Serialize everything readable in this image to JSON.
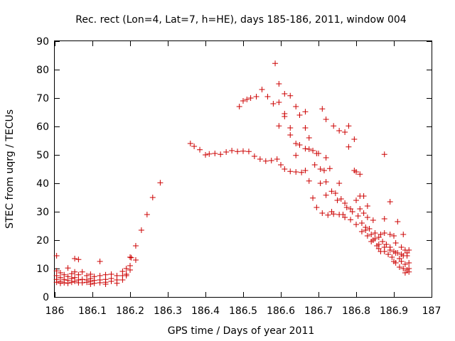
{
  "chart_data": {
    "type": "scatter",
    "title": "Rec. rect (Lon=4, Lat=7, h=HE), days 185-186, 2011, window 004",
    "xlabel": "GPS time / Days of year 2011",
    "ylabel": "STEC from uqrg / TECUs",
    "xlim": [
      186,
      187
    ],
    "ylim": [
      0,
      90
    ],
    "xticks": [
      186,
      186.1,
      186.2,
      186.3,
      186.4,
      186.5,
      186.6,
      186.7,
      186.8,
      186.9,
      187
    ],
    "xtick_labels": [
      "186",
      "186.1",
      "186.2",
      "186.3",
      "186.4",
      "186.5",
      "186.6",
      "186.7",
      "186.8",
      "186.9",
      "187"
    ],
    "yticks": [
      0,
      10,
      20,
      30,
      40,
      50,
      60,
      70,
      80,
      90
    ],
    "ytick_labels": [
      "0",
      "10",
      "20",
      "30",
      "40",
      "50",
      "60",
      "70",
      "80",
      "90"
    ],
    "marker": "+",
    "color": "#cc0000",
    "grid": false,
    "points": [
      [
        186.005,
        14.5
      ],
      [
        186.005,
        9.2
      ],
      [
        186.005,
        7.5
      ],
      [
        186.005,
        6.2
      ],
      [
        186.005,
        5.2
      ],
      [
        186.015,
        8.5
      ],
      [
        186.015,
        6.8
      ],
      [
        186.015,
        5.5
      ],
      [
        186.015,
        4.8
      ],
      [
        186.025,
        7.8
      ],
      [
        186.025,
        6.2
      ],
      [
        186.025,
        5.0
      ],
      [
        186.035,
        10.2
      ],
      [
        186.035,
        7.2
      ],
      [
        186.035,
        5.8
      ],
      [
        186.035,
        4.8
      ],
      [
        186.045,
        8.2
      ],
      [
        186.045,
        6.5
      ],
      [
        186.045,
        5.2
      ],
      [
        186.053,
        13.5
      ],
      [
        186.053,
        8.8
      ],
      [
        186.053,
        6.8
      ],
      [
        186.053,
        5.5
      ],
      [
        186.063,
        13.2
      ],
      [
        186.063,
        7.8
      ],
      [
        186.063,
        6.0
      ],
      [
        186.063,
        5.0
      ],
      [
        186.073,
        8.8
      ],
      [
        186.073,
        6.2
      ],
      [
        186.073,
        5.0
      ],
      [
        186.085,
        7.5
      ],
      [
        186.085,
        6.0
      ],
      [
        186.085,
        5.2
      ],
      [
        186.095,
        8.0
      ],
      [
        186.095,
        6.5
      ],
      [
        186.095,
        5.5
      ],
      [
        186.095,
        4.5
      ],
      [
        186.105,
        7.2
      ],
      [
        186.105,
        5.8
      ],
      [
        186.105,
        4.8
      ],
      [
        186.12,
        12.5
      ],
      [
        186.12,
        7.5
      ],
      [
        186.12,
        6.0
      ],
      [
        186.12,
        5.0
      ],
      [
        186.135,
        7.8
      ],
      [
        186.135,
        6.2
      ],
      [
        186.135,
        5.2
      ],
      [
        186.135,
        4.5
      ],
      [
        186.15,
        8.0
      ],
      [
        186.15,
        6.5
      ],
      [
        186.15,
        5.5
      ],
      [
        186.165,
        7.5
      ],
      [
        186.165,
        6.0
      ],
      [
        186.165,
        4.8
      ],
      [
        186.18,
        9.0
      ],
      [
        186.18,
        7.5
      ],
      [
        186.18,
        6.0
      ],
      [
        186.19,
        10.0
      ],
      [
        186.19,
        8.0
      ],
      [
        186.19,
        7.5
      ],
      [
        186.2,
        14.0
      ],
      [
        186.2,
        11.0
      ],
      [
        186.2,
        9.5
      ],
      [
        186.203,
        13.8
      ],
      [
        186.215,
        13.0
      ],
      [
        186.215,
        18.0
      ],
      [
        186.23,
        23.5
      ],
      [
        186.245,
        29.0
      ],
      [
        186.26,
        35.0
      ],
      [
        186.28,
        40.2
      ],
      [
        186.36,
        54.0
      ],
      [
        186.37,
        53.0
      ],
      [
        186.385,
        51.8
      ],
      [
        186.4,
        50.0
      ],
      [
        186.41,
        50.3
      ],
      [
        186.425,
        50.5
      ],
      [
        186.44,
        50.2
      ],
      [
        186.455,
        51.0
      ],
      [
        186.47,
        51.5
      ],
      [
        186.485,
        51.2
      ],
      [
        186.5,
        51.3
      ],
      [
        186.515,
        51.2
      ],
      [
        186.53,
        49.5
      ],
      [
        186.545,
        48.5
      ],
      [
        186.56,
        47.8
      ],
      [
        186.575,
        48.0
      ],
      [
        186.59,
        48.5
      ],
      [
        186.6,
        46.5
      ],
      [
        186.61,
        45.0
      ],
      [
        186.625,
        44.2
      ],
      [
        186.64,
        44.0
      ],
      [
        186.655,
        43.8
      ],
      [
        186.665,
        44.5
      ],
      [
        186.675,
        40.8
      ],
      [
        186.685,
        34.8
      ],
      [
        186.695,
        31.5
      ],
      [
        186.71,
        29.5
      ],
      [
        186.725,
        28.8
      ],
      [
        186.74,
        29.2
      ],
      [
        186.755,
        29.0
      ],
      [
        186.77,
        28.0
      ],
      [
        186.785,
        27.2
      ],
      [
        186.8,
        25.5
      ],
      [
        186.815,
        23.0
      ],
      [
        186.83,
        21.5
      ],
      [
        186.845,
        20.0
      ],
      [
        186.86,
        18.5
      ],
      [
        186.875,
        17.5
      ],
      [
        186.89,
        16.5
      ],
      [
        186.905,
        15.5
      ],
      [
        186.92,
        15.0
      ],
      [
        186.935,
        14.5
      ],
      [
        186.49,
        67.0
      ],
      [
        186.5,
        69.0
      ],
      [
        186.51,
        69.5
      ],
      [
        186.52,
        70.0
      ],
      [
        186.535,
        70.5
      ],
      [
        186.55,
        73.0
      ],
      [
        186.565,
        70.5
      ],
      [
        186.58,
        68.0
      ],
      [
        186.585,
        82.2
      ],
      [
        186.595,
        75.0
      ],
      [
        186.595,
        68.5
      ],
      [
        186.595,
        60.2
      ],
      [
        186.61,
        71.5
      ],
      [
        186.61,
        64.5
      ],
      [
        186.61,
        63.5
      ],
      [
        186.625,
        70.8
      ],
      [
        186.625,
        59.5
      ],
      [
        186.625,
        57.0
      ],
      [
        186.64,
        67.0
      ],
      [
        186.64,
        54.0
      ],
      [
        186.64,
        49.8
      ],
      [
        186.65,
        64.0
      ],
      [
        186.65,
        53.5
      ],
      [
        186.665,
        65.2
      ],
      [
        186.665,
        59.5
      ],
      [
        186.665,
        52.2
      ],
      [
        186.675,
        56.0
      ],
      [
        186.675,
        52.0
      ],
      [
        186.685,
        51.5
      ],
      [
        186.69,
        46.5
      ],
      [
        186.695,
        50.5
      ],
      [
        186.7,
        50.5
      ],
      [
        186.705,
        45.0
      ],
      [
        186.705,
        40.0
      ],
      [
        186.71,
        66.2
      ],
      [
        186.715,
        44.5
      ],
      [
        186.72,
        62.5
      ],
      [
        186.72,
        49.0
      ],
      [
        186.72,
        40.5
      ],
      [
        186.72,
        35.8
      ],
      [
        186.73,
        45.2
      ],
      [
        186.735,
        37.2
      ],
      [
        186.735,
        30.0
      ],
      [
        186.74,
        60.2
      ],
      [
        186.745,
        36.5
      ],
      [
        186.75,
        34.0
      ],
      [
        186.755,
        58.5
      ],
      [
        186.755,
        40.0
      ],
      [
        186.76,
        34.5
      ],
      [
        186.765,
        29.0
      ],
      [
        186.77,
        58.0
      ],
      [
        186.77,
        33.0
      ],
      [
        186.775,
        31.5
      ],
      [
        186.78,
        60.2
      ],
      [
        186.78,
        52.8
      ],
      [
        186.785,
        31.0
      ],
      [
        186.79,
        30.0
      ],
      [
        186.795,
        55.5
      ],
      [
        186.795,
        44.5
      ],
      [
        186.8,
        44.0
      ],
      [
        186.8,
        34.0
      ],
      [
        186.805,
        28.5
      ],
      [
        186.81,
        43.2
      ],
      [
        186.81,
        35.5
      ],
      [
        186.81,
        31.0
      ],
      [
        186.815,
        26.0
      ],
      [
        186.82,
        35.5
      ],
      [
        186.82,
        29.5
      ],
      [
        186.825,
        24.5
      ],
      [
        186.825,
        23.5
      ],
      [
        186.83,
        32.0
      ],
      [
        186.83,
        28.0
      ],
      [
        186.835,
        24.0
      ],
      [
        186.84,
        22.0
      ],
      [
        186.84,
        19.5
      ],
      [
        186.845,
        27.0
      ],
      [
        186.85,
        22.5
      ],
      [
        186.85,
        20.5
      ],
      [
        186.855,
        18.0
      ],
      [
        186.86,
        21.0
      ],
      [
        186.86,
        17.0
      ],
      [
        186.865,
        22.0
      ],
      [
        186.865,
        16.0
      ],
      [
        186.87,
        19.5
      ],
      [
        186.875,
        50.2
      ],
      [
        186.875,
        27.5
      ],
      [
        186.875,
        22.5
      ],
      [
        186.875,
        16.0
      ],
      [
        186.88,
        18.5
      ],
      [
        186.885,
        15.0
      ],
      [
        186.89,
        33.5
      ],
      [
        186.89,
        22.0
      ],
      [
        186.89,
        17.5
      ],
      [
        186.895,
        14.0
      ],
      [
        186.9,
        21.5
      ],
      [
        186.9,
        16.0
      ],
      [
        186.9,
        12.5
      ],
      [
        186.905,
        19.0
      ],
      [
        186.905,
        12.0
      ],
      [
        186.91,
        26.5
      ],
      [
        186.91,
        15.5
      ],
      [
        186.915,
        13.5
      ],
      [
        186.915,
        10.5
      ],
      [
        186.92,
        17.5
      ],
      [
        186.92,
        12.5
      ],
      [
        186.925,
        22.0
      ],
      [
        186.925,
        14.5
      ],
      [
        186.925,
        10.0
      ],
      [
        186.93,
        16.5
      ],
      [
        186.93,
        11.5
      ],
      [
        186.93,
        8.5
      ],
      [
        186.935,
        15.5
      ],
      [
        186.935,
        9.5
      ],
      [
        186.94,
        16.5
      ],
      [
        186.94,
        12.0
      ],
      [
        186.94,
        10.0
      ],
      [
        186.94,
        8.8
      ]
    ]
  }
}
